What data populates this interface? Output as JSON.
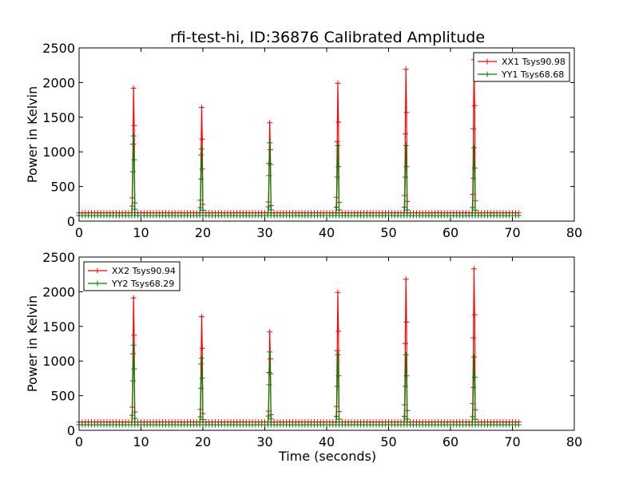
{
  "title": "rfi-test-hi, ID:36876 Calibrated Amplitude",
  "colors": {
    "red": "#ff0000",
    "green": "#008000",
    "frame": "#000000"
  },
  "chart_data": [
    {
      "type": "line",
      "title": "rfi-test-hi, ID:36876 Calibrated Amplitude",
      "xlabel": "",
      "ylabel": "Power in Kelvin",
      "xlim": [
        0,
        80
      ],
      "ylim": [
        0,
        2500
      ],
      "xticks": [
        "0",
        "10",
        "20",
        "30",
        "40",
        "50",
        "60",
        "70",
        "80"
      ],
      "yticks": [
        "0",
        "500",
        "1000",
        "1500",
        "2000",
        "2500"
      ],
      "grid": false,
      "legend_position": "top-right",
      "marker": "+",
      "sample_interval": 0.5,
      "t_end": 71,
      "series": [
        {
          "name": "XX1 Tsys90.98",
          "color": "#ff0000",
          "baseline": 120,
          "spikes": [
            [
              8.8,
              1920
            ],
            [
              19.8,
              1640
            ],
            [
              30.8,
              1420
            ],
            [
              41.8,
              1990
            ],
            [
              52.8,
              2190
            ],
            [
              63.8,
              2330
            ]
          ]
        },
        {
          "name": "YY1 Tsys68.68",
          "color": "#008000",
          "baseline": 80,
          "spikes": [
            [
              8.8,
              1230
            ],
            [
              19.8,
              1040
            ],
            [
              30.8,
              1130
            ],
            [
              41.8,
              1090
            ],
            [
              52.8,
              1090
            ],
            [
              63.8,
              1060
            ]
          ]
        }
      ]
    },
    {
      "type": "line",
      "title": "",
      "xlabel": "Time (seconds)",
      "ylabel": "Power in Kelvin",
      "xlim": [
        0,
        80
      ],
      "ylim": [
        0,
        2500
      ],
      "xticks": [
        "0",
        "10",
        "20",
        "30",
        "40",
        "50",
        "60",
        "70",
        "80"
      ],
      "yticks": [
        "0",
        "500",
        "1000",
        "1500",
        "2000",
        "2500"
      ],
      "grid": false,
      "legend_position": "top-left",
      "marker": "+",
      "sample_interval": 0.5,
      "t_end": 71,
      "series": [
        {
          "name": "XX2 Tsys90.94",
          "color": "#ff0000",
          "baseline": 120,
          "spikes": [
            [
              8.8,
              1910
            ],
            [
              19.8,
              1640
            ],
            [
              30.8,
              1420
            ],
            [
              41.8,
              1990
            ],
            [
              52.8,
              2180
            ],
            [
              63.8,
              2330
            ]
          ]
        },
        {
          "name": "YY2 Tsys68.29",
          "color": "#008000",
          "baseline": 80,
          "spikes": [
            [
              8.8,
              1230
            ],
            [
              19.8,
              1040
            ],
            [
              30.8,
              1130
            ],
            [
              41.8,
              1090
            ],
            [
              52.8,
              1090
            ],
            [
              63.8,
              1060
            ]
          ]
        }
      ]
    }
  ]
}
